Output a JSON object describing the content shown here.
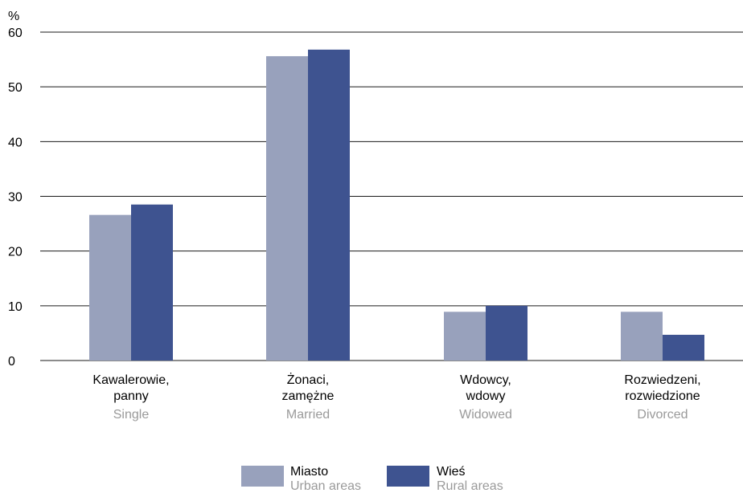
{
  "chart_data": {
    "type": "bar",
    "y_unit": "%",
    "ylim": [
      0,
      60
    ],
    "yticks": [
      0,
      10,
      20,
      30,
      40,
      50,
      60
    ],
    "grid": true,
    "legend_position": "bottom-center",
    "categories": [
      {
        "line1": "Kawalerowie,",
        "line2": "panny",
        "line3": "Single"
      },
      {
        "line1": "Żonaci,",
        "line2": "zamężne",
        "line3": "Married"
      },
      {
        "line1": "Wdowcy,",
        "line2": "wdowy",
        "line3": "Widowed"
      },
      {
        "line1": "Rozwiedzeni,",
        "line2": "rozwiedzione",
        "line3": "Divorced"
      }
    ],
    "series": [
      {
        "name": "Miasto",
        "name_en": "Urban areas",
        "color": "#98a1bc",
        "values": [
          26.6,
          55.6,
          8.9,
          8.9
        ]
      },
      {
        "name": "Wieś",
        "name_en": "Rural areas",
        "color": "#3e5390",
        "values": [
          28.5,
          56.8,
          10.0,
          4.7
        ]
      }
    ]
  }
}
